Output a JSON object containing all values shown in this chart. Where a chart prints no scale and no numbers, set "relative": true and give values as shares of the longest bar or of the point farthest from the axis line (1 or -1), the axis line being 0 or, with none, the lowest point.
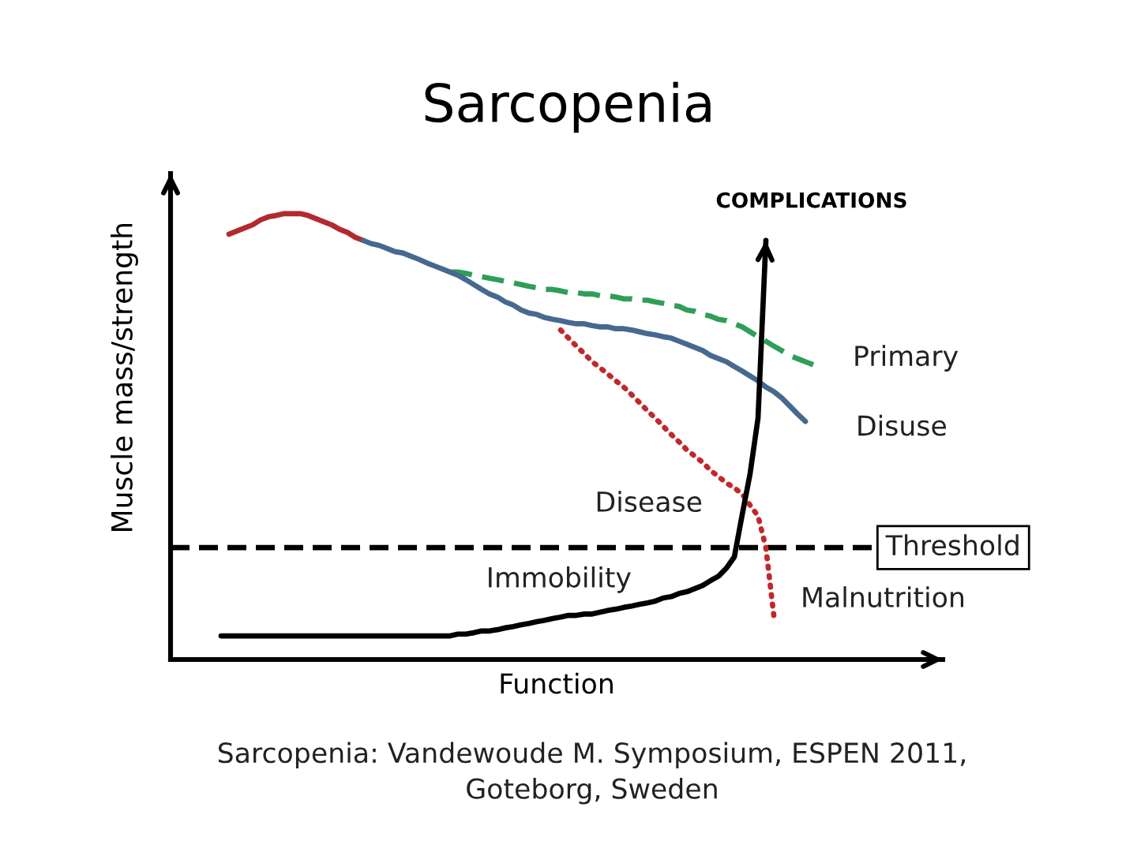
{
  "chart_data": {
    "type": "line",
    "title": "Sarcopenia",
    "xlabel": "Function",
    "ylabel": "Muscle mass/strength",
    "relative": true,
    "categories": [
      null,
      null,
      null,
      null,
      null,
      null,
      null,
      null,
      null,
      null,
      null,
      null,
      null,
      null,
      null,
      null,
      null,
      null,
      null,
      null,
      null,
      null,
      null,
      null,
      null,
      null,
      null,
      null,
      null,
      null,
      null,
      null,
      null,
      null,
      null,
      null,
      null,
      null,
      null,
      null,
      null,
      null,
      null,
      null,
      null,
      null,
      null,
      null,
      null,
      null,
      null,
      null,
      null,
      null,
      null,
      null,
      null,
      null,
      null,
      null,
      null,
      null,
      null,
      null,
      null,
      null,
      null,
      null,
      null,
      null,
      null,
      null,
      null,
      null,
      null,
      null,
      null,
      null,
      null,
      null,
      null,
      null,
      null,
      null,
      null,
      null,
      null,
      null,
      null,
      null,
      null,
      null,
      null,
      null,
      null,
      null,
      null,
      null
    ],
    "series": [
      {
        "color": "#b22a2e",
        "line_style": "solid",
        "values": [
          null,
          null,
          null,
          null,
          null,
          null,
          null,
          0.954,
          0.961,
          0.968,
          0.975,
          0.986,
          0.993,
          0.996,
          1.0,
          1.0,
          1.0,
          0.996,
          0.989,
          0.982,
          0.975,
          0.965,
          0.958,
          0.947,
          0.94,
          null,
          null,
          null,
          null,
          null,
          null,
          null,
          null,
          null,
          null,
          null,
          null,
          null,
          null,
          null,
          null,
          null,
          null,
          null,
          null,
          null,
          null,
          null,
          null,
          null,
          null,
          null,
          null,
          null,
          null,
          null,
          null,
          null,
          null,
          null,
          null,
          null,
          null,
          null,
          null,
          null,
          null,
          null,
          null,
          null,
          null,
          null,
          null,
          null,
          null,
          null,
          null,
          null,
          null,
          null,
          null,
          null,
          null,
          null,
          null,
          null,
          null,
          null,
          null,
          null,
          null,
          null,
          null,
          null,
          null,
          null,
          null,
          null
        ]
      },
      {
        "name": "Primary",
        "color": "#2e9e58",
        "line_style": "dashed",
        "values": [
          null,
          null,
          null,
          null,
          null,
          null,
          null,
          null,
          null,
          null,
          null,
          null,
          null,
          null,
          null,
          null,
          null,
          null,
          null,
          null,
          null,
          null,
          null,
          null,
          null,
          null,
          null,
          null,
          null,
          null,
          null,
          null,
          null,
          null,
          null,
          0.869,
          0.869,
          0.866,
          0.862,
          0.859,
          0.855,
          0.852,
          0.848,
          0.845,
          0.841,
          0.837,
          0.834,
          0.83,
          0.83,
          0.827,
          0.823,
          0.823,
          0.82,
          0.82,
          0.816,
          0.816,
          0.813,
          0.809,
          0.809,
          0.806,
          0.806,
          0.802,
          0.799,
          0.795,
          0.792,
          0.784,
          0.781,
          0.774,
          0.77,
          0.763,
          0.76,
          0.753,
          0.746,
          0.735,
          0.724,
          0.714,
          0.703,
          0.693,
          0.682,
          0.675,
          0.668,
          0.661,
          null,
          null,
          null,
          null,
          null,
          null,
          null,
          null,
          null,
          null,
          null,
          null,
          null,
          null,
          null,
          null
        ]
      },
      {
        "name": "Disuse",
        "color": "#46698f",
        "line_style": "solid",
        "values": [
          null,
          null,
          null,
          null,
          null,
          null,
          null,
          null,
          null,
          null,
          null,
          null,
          null,
          null,
          null,
          null,
          null,
          null,
          null,
          null,
          null,
          null,
          null,
          null,
          0.94,
          0.933,
          0.929,
          0.922,
          0.915,
          0.912,
          0.905,
          0.898,
          0.89,
          0.883,
          0.876,
          0.869,
          0.862,
          0.852,
          0.841,
          0.83,
          0.82,
          0.813,
          0.802,
          0.795,
          0.784,
          0.777,
          0.774,
          0.767,
          0.763,
          0.76,
          0.756,
          0.753,
          0.753,
          0.749,
          0.746,
          0.746,
          0.742,
          0.742,
          0.739,
          0.735,
          0.731,
          0.728,
          0.724,
          0.721,
          0.714,
          0.707,
          0.7,
          0.693,
          0.682,
          0.675,
          0.668,
          0.657,
          0.647,
          0.636,
          0.625,
          0.611,
          0.601,
          0.587,
          0.569,
          0.551,
          0.534,
          null,
          null,
          null,
          null,
          null,
          null,
          null,
          null,
          null,
          null,
          null,
          null,
          null,
          null,
          null,
          null,
          null
        ]
      },
      {
        "name": "Disease",
        "color": "#c0282d",
        "line_style": "dotted",
        "values": [
          null,
          null,
          null,
          null,
          null,
          null,
          null,
          null,
          null,
          null,
          null,
          null,
          null,
          null,
          null,
          null,
          null,
          null,
          null,
          null,
          null,
          null,
          null,
          null,
          null,
          null,
          null,
          null,
          null,
          null,
          null,
          null,
          null,
          null,
          null,
          null,
          null,
          null,
          null,
          null,
          null,
          null,
          null,
          null,
          null,
          null,
          null,
          null,
          null,
          0.739,
          0.721,
          0.703,
          0.686,
          0.668,
          0.654,
          0.64,
          0.625,
          0.611,
          0.594,
          0.576,
          0.558,
          0.541,
          0.523,
          0.505,
          0.488,
          0.47,
          0.456,
          0.442,
          0.424,
          0.41,
          0.396,
          0.385,
          0.371,
          0.346,
          0.322,
          0.251,
          0.099,
          null,
          null,
          null,
          null,
          null,
          null,
          null,
          null,
          null,
          null,
          null,
          null,
          null,
          null,
          null,
          null,
          null,
          null,
          null,
          null,
          null
        ]
      },
      {
        "name": "Immobility",
        "color": "#000000",
        "line_style": "solid",
        "values": [
          null,
          null,
          null,
          null,
          null,
          null,
          0.053,
          0.053,
          0.053,
          0.053,
          0.053,
          0.053,
          0.053,
          0.053,
          0.053,
          0.053,
          0.053,
          0.053,
          0.053,
          0.053,
          0.053,
          0.053,
          0.053,
          0.053,
          0.053,
          0.053,
          0.053,
          0.053,
          0.053,
          0.053,
          0.053,
          0.053,
          0.053,
          0.053,
          0.053,
          0.053,
          0.057,
          0.057,
          0.06,
          0.064,
          0.064,
          0.067,
          0.071,
          0.074,
          0.078,
          0.081,
          0.085,
          0.088,
          0.092,
          0.095,
          0.099,
          0.099,
          0.102,
          0.102,
          0.106,
          0.11,
          0.113,
          0.117,
          0.12,
          0.124,
          0.127,
          0.131,
          0.138,
          0.141,
          0.148,
          0.152,
          0.159,
          0.166,
          0.177,
          0.187,
          0.205,
          0.23,
          0.325,
          0.417,
          0.541,
          0.94,
          null,
          null,
          null,
          null,
          null,
          null,
          null,
          null,
          null,
          null,
          null,
          null,
          null,
          null,
          null,
          null,
          null,
          null,
          null,
          null,
          null,
          null
        ]
      }
    ],
    "ref_lines": [
      {
        "axis": "y",
        "value": 0.251,
        "label": "Threshold",
        "color": "#000000",
        "line_style": "dashed"
      }
    ],
    "annotations": [
      "COMPLICATIONS",
      "Malnutrition",
      "Sarcopenia: Vandewoude M. Symposium, ESPEN 2011,\nGoteborg, Sweden"
    ]
  }
}
